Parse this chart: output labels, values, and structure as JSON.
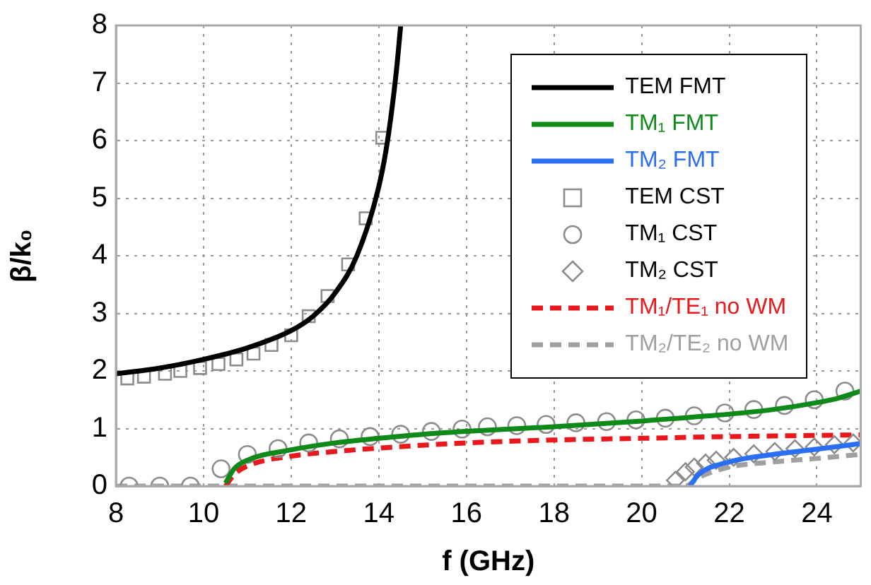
{
  "chart_data": {
    "type": "line",
    "xlabel": "f (GHz)",
    "ylabel": "β/k₀",
    "xlim": [
      8,
      25
    ],
    "ylim": [
      0,
      8
    ],
    "xticks": [
      8,
      10,
      12,
      14,
      16,
      18,
      20,
      22,
      24
    ],
    "yticks": [
      0,
      1,
      2,
      3,
      4,
      5,
      6,
      7,
      8
    ],
    "grid": true,
    "legend": "top right",
    "series": [
      {
        "name": "TEM FMT",
        "color": "#000000",
        "line_style": "solid",
        "x": [
          8,
          9,
          10,
          11,
          12,
          12.5,
          13,
          13.5,
          14,
          14.2,
          14.4,
          14.5
        ],
        "values": [
          1.95,
          2.05,
          2.2,
          2.4,
          2.7,
          2.95,
          3.35,
          4.0,
          5.2,
          6.0,
          7.2,
          8.0
        ]
      },
      {
        "name": "TM₁ FMT",
        "color": "#0f8a1a",
        "line_style": "solid",
        "x": [
          10.5,
          10.7,
          11,
          12,
          13,
          14,
          15,
          16,
          18,
          20,
          22,
          23,
          24,
          24.5,
          25
        ],
        "values": [
          0.05,
          0.3,
          0.45,
          0.63,
          0.75,
          0.83,
          0.9,
          0.95,
          1.03,
          1.13,
          1.25,
          1.33,
          1.45,
          1.53,
          1.65
        ]
      },
      {
        "name": "TM₂ FMT",
        "color": "#2a6ff2",
        "line_style": "solid",
        "x": [
          21.1,
          21.3,
          22,
          23,
          24,
          25
        ],
        "values": [
          0,
          0.2,
          0.42,
          0.55,
          0.64,
          0.74
        ]
      },
      {
        "name": "TEM CST",
        "type": "scatter",
        "marker": "square",
        "color": "#8c8c8c",
        "x": [
          8.26,
          8.64,
          9.12,
          9.47,
          9.92,
          10.34,
          10.75,
          11.14,
          11.55,
          12.0,
          12.4,
          12.83,
          13.3,
          13.7,
          14.08
        ],
        "values": [
          1.87,
          1.9,
          1.95,
          2.0,
          2.05,
          2.12,
          2.2,
          2.3,
          2.45,
          2.62,
          2.95,
          3.3,
          3.85,
          4.65,
          6.05
        ]
      },
      {
        "name": "TM₁ CST",
        "type": "scatter",
        "marker": "circle",
        "color": "#8c8c8c",
        "x": [
          8.3,
          9.0,
          9.7,
          10.4,
          11.0,
          11.7,
          12.4,
          13.1,
          13.8,
          14.5,
          15.2,
          15.9,
          16.48,
          17.15,
          17.82,
          18.5,
          19.2,
          19.87,
          20.54,
          21.2,
          21.9,
          22.56,
          23.26,
          23.94,
          24.64
        ],
        "values": [
          0,
          0,
          0,
          0.3,
          0.55,
          0.65,
          0.75,
          0.82,
          0.86,
          0.9,
          0.95,
          0.99,
          1.03,
          1.05,
          1.07,
          1.1,
          1.12,
          1.15,
          1.18,
          1.22,
          1.27,
          1.33,
          1.4,
          1.5,
          1.65
        ]
      },
      {
        "name": "TM₂ CST",
        "type": "scatter",
        "marker": "diamond",
        "color": "#8c8c8c",
        "x": [
          20.77,
          21.0,
          21.2,
          21.46,
          21.7,
          22.1,
          22.56,
          23.04,
          23.5,
          23.94,
          24.4,
          24.83
        ],
        "values": [
          0.1,
          0.25,
          0.33,
          0.4,
          0.45,
          0.5,
          0.56,
          0.6,
          0.65,
          0.68,
          0.72,
          0.75
        ]
      },
      {
        "name": "TM₁/TE₁ no WM",
        "color": "#e8181c",
        "line_style": "dashed",
        "x": [
          10.5,
          10.7,
          11,
          12,
          13,
          14,
          16,
          18,
          20,
          22,
          24,
          25
        ],
        "values": [
          0,
          0.2,
          0.35,
          0.52,
          0.6,
          0.66,
          0.75,
          0.8,
          0.83,
          0.86,
          0.88,
          0.89
        ]
      },
      {
        "name": "TM₂/TE₂ no WM",
        "color": "#a0a0a0",
        "line_style": "dashed",
        "x": [
          8,
          21.0,
          21.3,
          22,
          23,
          24,
          25
        ],
        "values": [
          0,
          0,
          0.15,
          0.33,
          0.42,
          0.48,
          0.55
        ]
      }
    ]
  }
}
